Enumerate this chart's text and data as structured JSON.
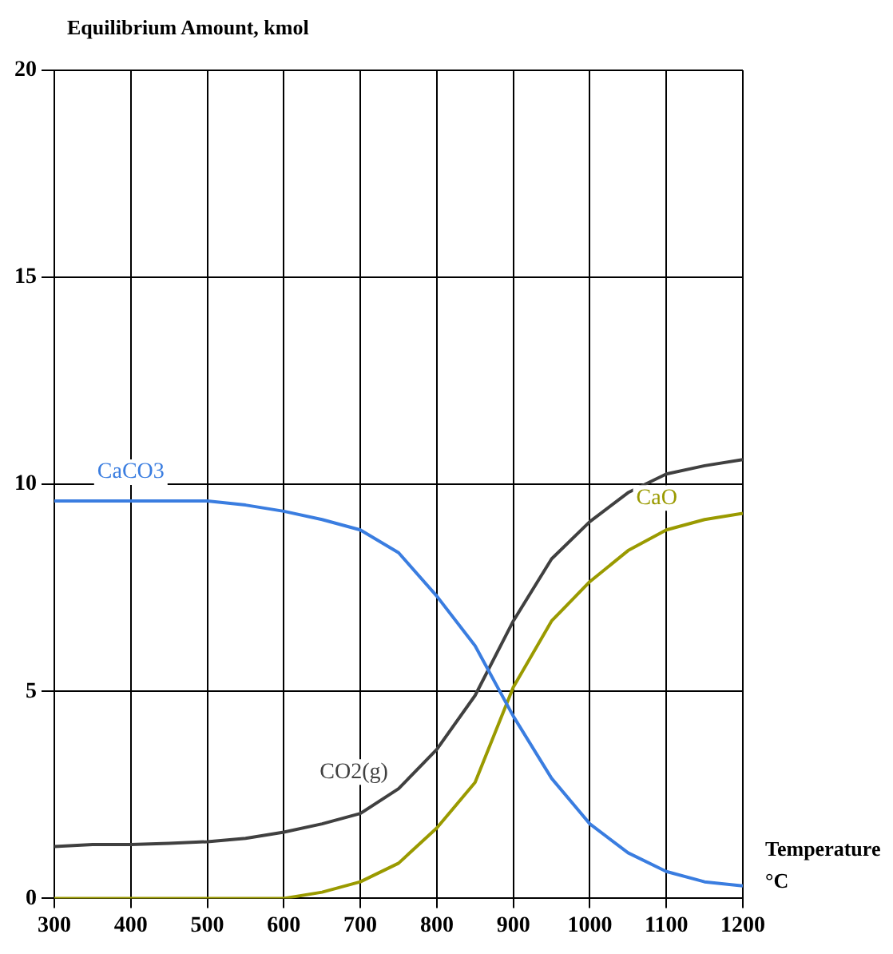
{
  "chart_data": {
    "type": "line",
    "ylabel": "Equilibrium Amount, kmol",
    "xlabel": "Temperature\n°C",
    "x": [
      300,
      350,
      400,
      450,
      500,
      550,
      600,
      650,
      700,
      750,
      800,
      850,
      900,
      950,
      1000,
      1050,
      1100,
      1150,
      1200
    ],
    "series": [
      {
        "name": "CaCO3",
        "color": "#3a7de0",
        "values": [
          9.6,
          9.6,
          9.6,
          9.6,
          9.6,
          9.5,
          9.35,
          9.15,
          8.9,
          8.35,
          7.3,
          6.1,
          4.4,
          2.9,
          1.8,
          1.1,
          0.65,
          0.4,
          0.3
        ]
      },
      {
        "name": "CO2(g)",
        "color": "#404040",
        "values": [
          1.25,
          1.3,
          1.3,
          1.33,
          1.37,
          1.45,
          1.6,
          1.8,
          2.05,
          2.65,
          3.6,
          4.9,
          6.7,
          8.2,
          9.1,
          9.8,
          10.25,
          10.45,
          10.6
        ]
      },
      {
        "name": "CaO",
        "color": "#9a9a00",
        "values": [
          0,
          0,
          0,
          0,
          0,
          0,
          0,
          0.15,
          0.4,
          0.85,
          1.7,
          2.8,
          5.1,
          6.7,
          7.65,
          8.4,
          8.9,
          9.15,
          9.3
        ]
      }
    ],
    "xlim": [
      300,
      1200
    ],
    "xticks": [
      300,
      400,
      500,
      600,
      700,
      800,
      900,
      1000,
      1100,
      1200
    ],
    "ylim": [
      0,
      20
    ],
    "yticks": [
      0,
      5,
      10,
      15,
      20
    ],
    "grid": true,
    "legend": false,
    "marker": "none",
    "line_style": "solid"
  }
}
